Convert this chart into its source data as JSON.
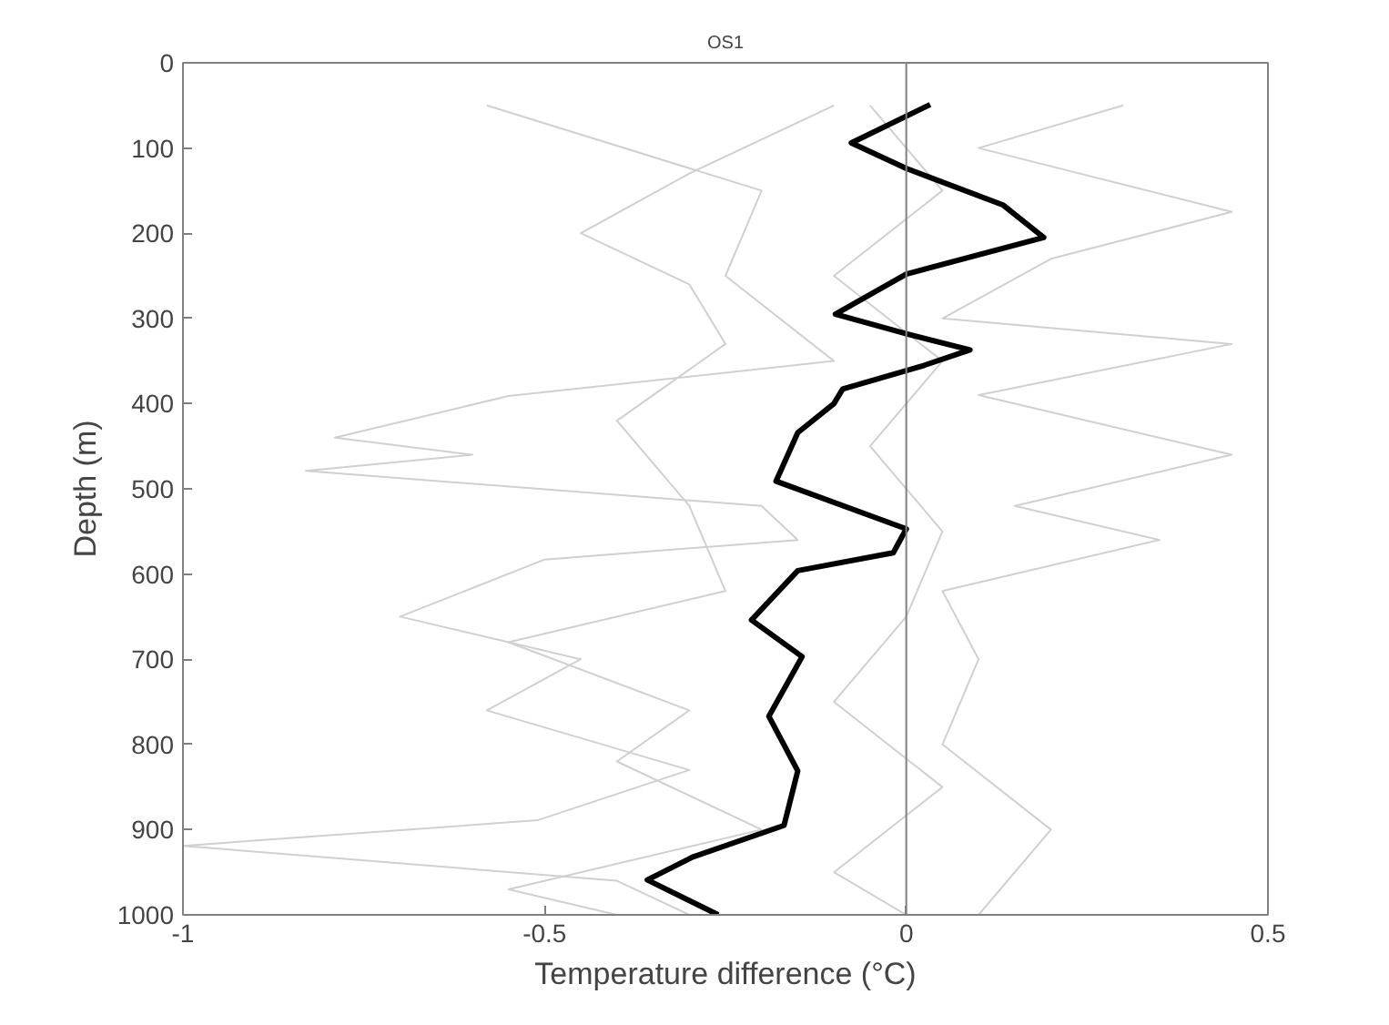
{
  "chart_data": {
    "type": "line",
    "title": "OS1",
    "xlabel": "Temperature difference (°C)",
    "ylabel": "Depth (m)",
    "xlim": [
      -1,
      0.5
    ],
    "xticks": [
      -1,
      -0.5,
      0,
      0.5
    ],
    "ylim": [
      1000,
      0
    ],
    "yticks": [
      0,
      100,
      200,
      300,
      400,
      500,
      600,
      700,
      800,
      900,
      1000
    ],
    "grid": false,
    "ref_lines": [
      {
        "axis": "x",
        "value": 0,
        "color": "#808080"
      }
    ],
    "series": [
      {
        "color": "#d0d0d0",
        "x": [
          -0.58,
          -0.2,
          -0.25,
          -0.1,
          -0.55,
          -0.79,
          -0.6,
          -0.83,
          -0.2,
          -0.15,
          -0.5,
          -0.7,
          -0.45,
          -0.58,
          -0.3,
          -0.51,
          -1.0,
          -0.4,
          -0.3
        ],
        "values": [
          50,
          150,
          250,
          350,
          391,
          440,
          460,
          479,
          520,
          560,
          583,
          650,
          700,
          760,
          830,
          889,
          919,
          960,
          1000
        ]
      },
      {
        "color": "#d0d0d0",
        "x": [
          0.3,
          0.1,
          0.45,
          0.2,
          0.05,
          0.45,
          0.1,
          0.45,
          0.15,
          0.35,
          0.05,
          0.1,
          0.05,
          0.2,
          0.1
        ],
        "values": [
          50,
          100,
          175,
          230,
          300,
          330,
          390,
          460,
          520,
          560,
          620,
          700,
          800,
          900,
          1000
        ]
      },
      {
        "color": "#d0d0d0",
        "x": [
          -0.1,
          -0.3,
          -0.45,
          -0.3,
          -0.25,
          -0.4,
          -0.3,
          -0.25,
          -0.55,
          -0.3,
          -0.4,
          -0.2,
          -0.55,
          -0.4
        ],
        "values": [
          50,
          130,
          200,
          260,
          330,
          420,
          520,
          620,
          680,
          760,
          820,
          900,
          970,
          1000
        ]
      },
      {
        "color": "#d0d0d0",
        "x": [
          -0.05,
          0.05,
          -0.1,
          0.05,
          -0.05,
          0.05,
          0.0,
          -0.1,
          0.05,
          -0.1,
          0.0
        ],
        "values": [
          50,
          150,
          250,
          350,
          450,
          550,
          650,
          750,
          850,
          950,
          1000
        ]
      },
      {
        "color": "#000000",
        "x": [
          0.033,
          -0.076,
          0,
          0.134,
          0.19,
          0,
          -0.098,
          0,
          0.088,
          0.025,
          -0.088,
          -0.1,
          -0.15,
          -0.18,
          0,
          -0.018,
          -0.15,
          -0.214,
          -0.144,
          -0.19,
          -0.15,
          -0.169,
          -0.295,
          -0.358,
          -0.26
        ],
        "values": [
          49,
          94,
          124,
          167,
          205,
          248,
          295,
          318,
          337,
          355,
          383,
          400,
          434,
          491,
          547,
          575,
          596,
          654,
          697,
          767,
          831,
          895,
          932,
          959,
          1000
        ]
      }
    ]
  }
}
